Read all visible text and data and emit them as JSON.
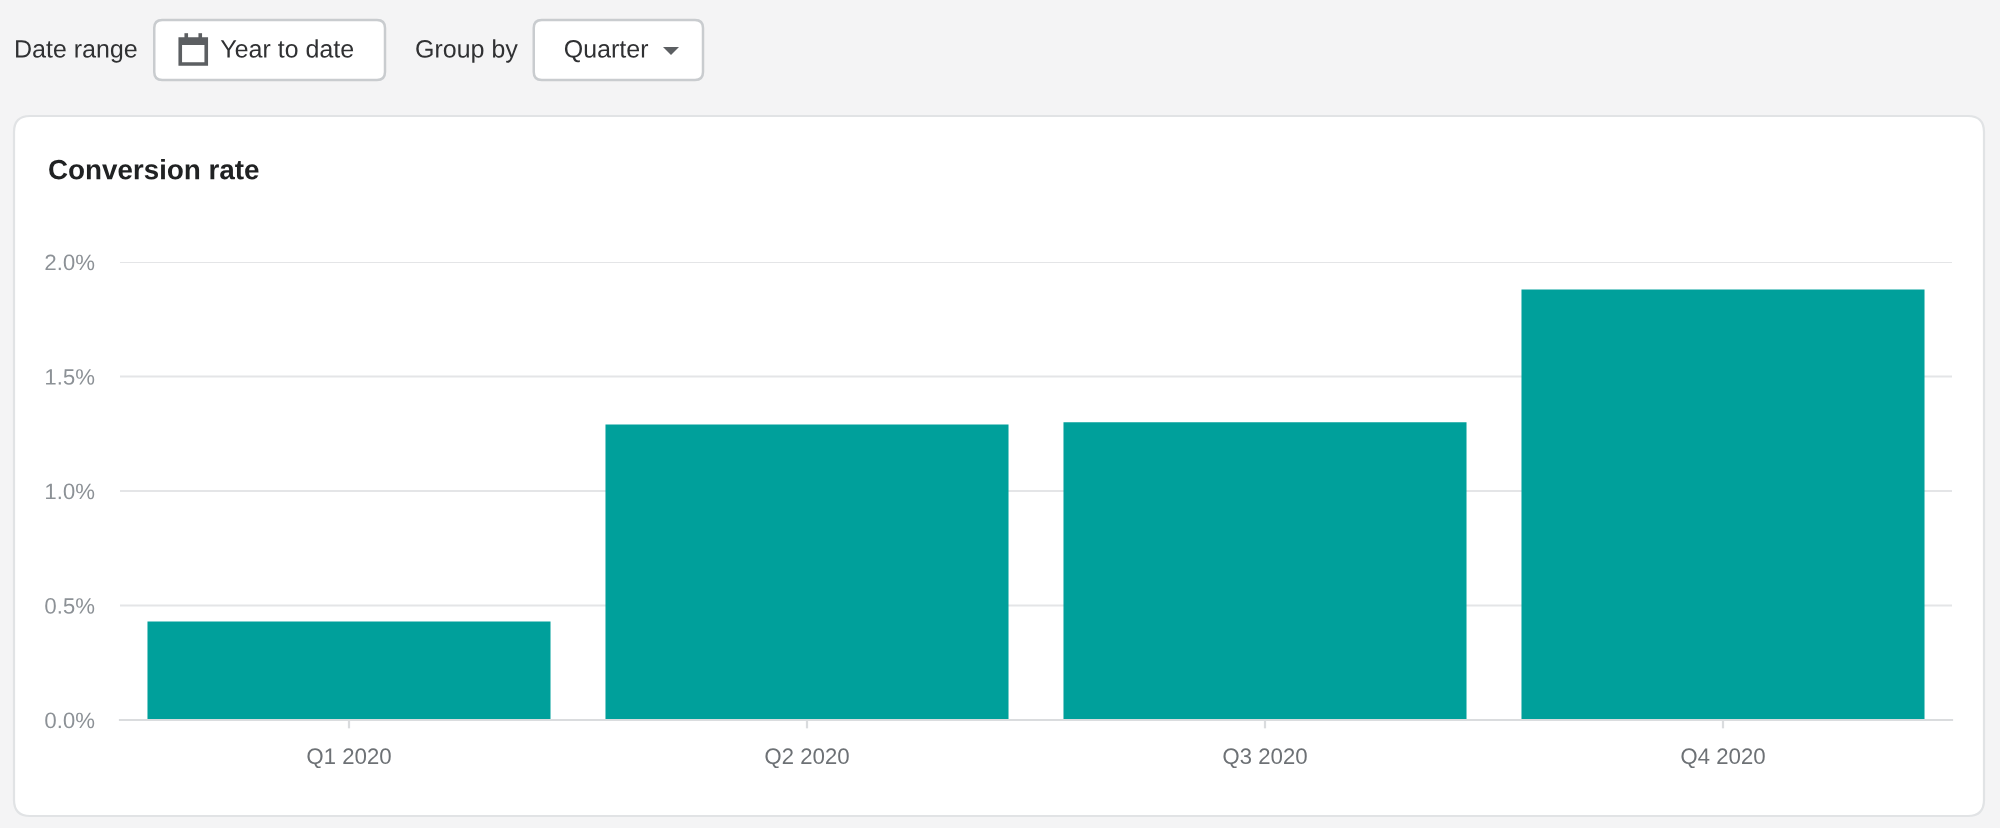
{
  "chart_data": {
    "type": "bar",
    "title": "Conversion rate",
    "categories": [
      "Q1 2020",
      "Q2 2020",
      "Q3 2020",
      "Q4 2020"
    ],
    "values": [
      0.43,
      1.29,
      1.3,
      1.88
    ],
    "color": "#00a09b",
    "ylim": [
      0,
      2
    ],
    "yticks": [
      {
        "value": 0,
        "label": "0.0%"
      },
      {
        "value": 0.5,
        "label": "0.5%"
      },
      {
        "value": 1,
        "label": "1.0%"
      },
      {
        "value": 1.5,
        "label": "1.5%"
      },
      {
        "value": 2,
        "label": "2.0%"
      }
    ],
    "grid": "y",
    "annotations": [
      "Date range",
      "Year to date",
      "Group by",
      "Quarter"
    ]
  }
}
